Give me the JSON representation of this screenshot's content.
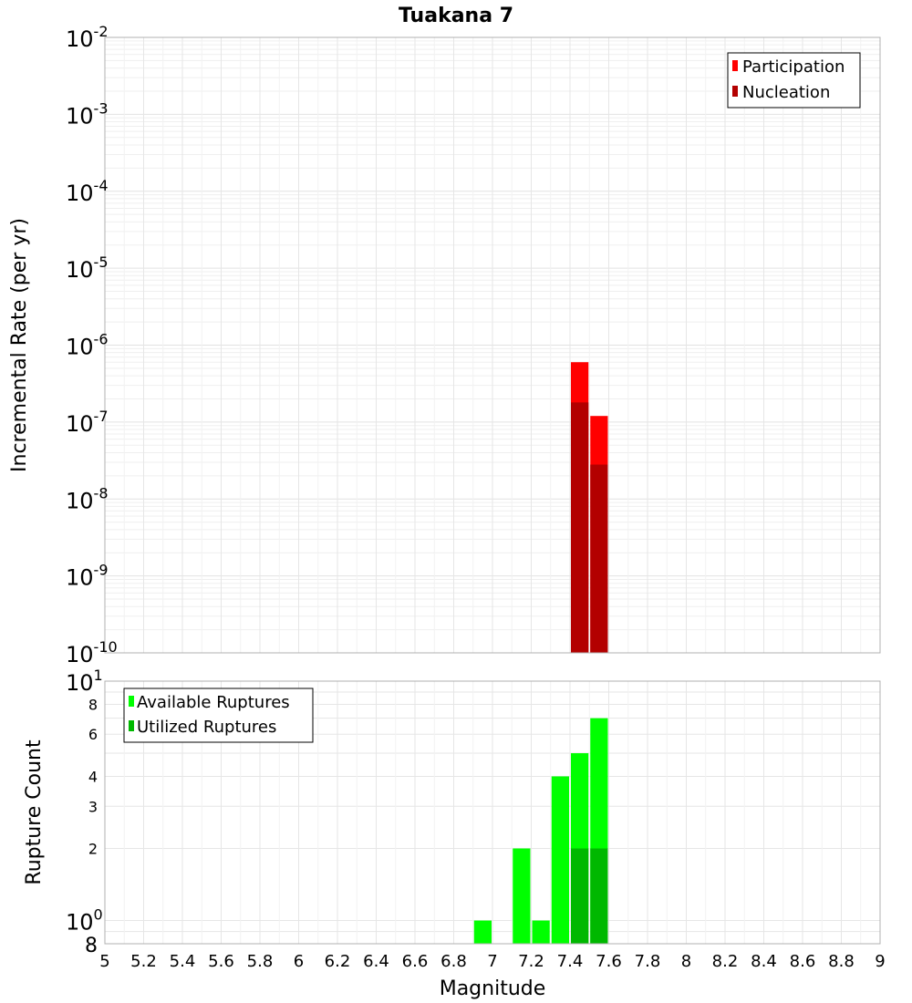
{
  "chart_data": [
    {
      "type": "bar",
      "title": "Tuakana 7",
      "xlabel": "",
      "ylabel": "Incremental Rate (per yr)",
      "y_scale": "log",
      "ylim": [
        1e-10,
        0.01
      ],
      "xlim": [
        5,
        9
      ],
      "grid": true,
      "bar_width": 0.1,
      "legend_position": "top-right",
      "y_ticks": [
        {
          "base": "10",
          "exp": "-2"
        },
        {
          "base": "10",
          "exp": "-3"
        },
        {
          "base": "10",
          "exp": "-4"
        },
        {
          "base": "10",
          "exp": "-5"
        },
        {
          "base": "10",
          "exp": "-6"
        },
        {
          "base": "10",
          "exp": "-7"
        },
        {
          "base": "10",
          "exp": "-8"
        },
        {
          "base": "10",
          "exp": "-9"
        },
        {
          "base": "10",
          "exp": "-10"
        }
      ],
      "series": [
        {
          "name": "Participation",
          "color": "#ff0000",
          "x": [
            7.45,
            7.55
          ],
          "values": [
            6e-07,
            1.2e-07
          ]
        },
        {
          "name": "Nucleation",
          "color": "#b30000",
          "x": [
            7.45,
            7.55
          ],
          "values": [
            1.8e-07,
            2.8e-08
          ]
        }
      ]
    },
    {
      "type": "bar",
      "title": "",
      "xlabel": "Magnitude",
      "ylabel": "Rupture Count",
      "y_scale": "log",
      "ylim": [
        0.8,
        10
      ],
      "xlim": [
        5,
        9
      ],
      "grid": true,
      "bar_width": 0.1,
      "legend_position": "top-left",
      "x_ticks": [
        "5",
        "5.2",
        "5.4",
        "5.6",
        "5.8",
        "6",
        "6.2",
        "6.4",
        "6.6",
        "6.8",
        "7",
        "7.2",
        "7.4",
        "7.6",
        "7.8",
        "8",
        "8.2",
        "8.4",
        "8.6",
        "8.8",
        "9"
      ],
      "y_ticks_major": [
        {
          "value": 10,
          "base": "10",
          "exp": "1"
        },
        {
          "value": 1,
          "base": "10",
          "exp": "0"
        }
      ],
      "y_ticks_minor": [
        {
          "value": 8,
          "label": "8"
        },
        {
          "value": 6,
          "label": "6"
        },
        {
          "value": 4,
          "label": "4"
        },
        {
          "value": 3,
          "label": "3"
        },
        {
          "value": 2,
          "label": "2"
        }
      ],
      "y_bottom_label": "8",
      "series": [
        {
          "name": "Available Ruptures",
          "color": "#00ff00",
          "x": [
            6.95,
            7.15,
            7.25,
            7.35,
            7.45,
            7.55
          ],
          "values": [
            1,
            2,
            1,
            4,
            5,
            7
          ]
        },
        {
          "name": "Utilized Ruptures",
          "color": "#00b800",
          "x": [
            7.45,
            7.55
          ],
          "values": [
            2,
            2
          ]
        }
      ]
    }
  ]
}
